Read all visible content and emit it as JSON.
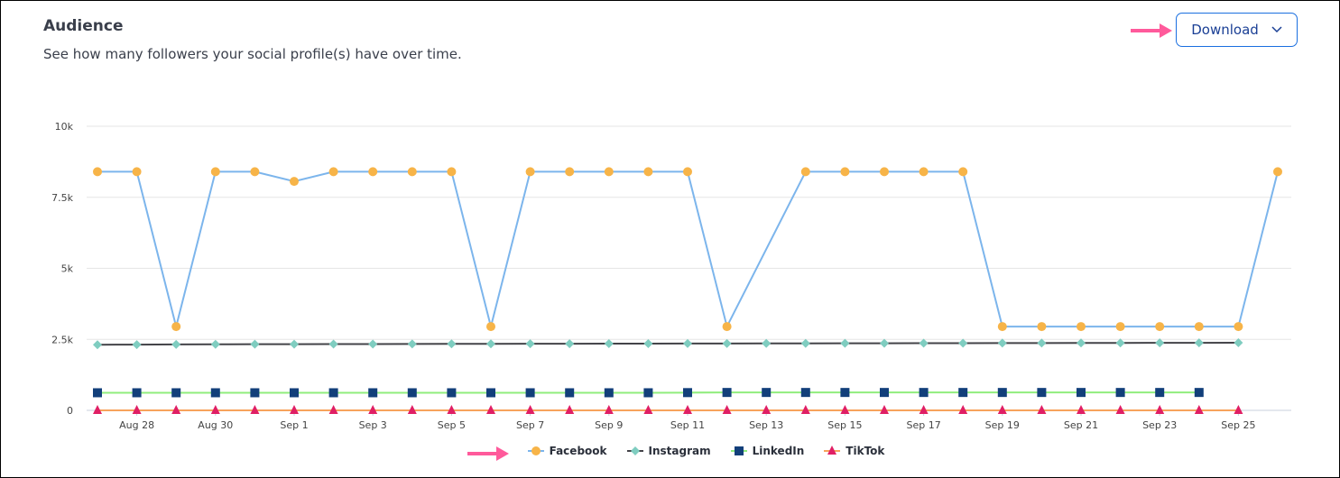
{
  "header": {
    "title": "Audience",
    "subtitle": "See how many followers your social profile(s) have over time.",
    "download_label": "Download"
  },
  "colors": {
    "annotation_arrow": "#ff5a9b",
    "button_border": "#1a6fe0"
  },
  "chart_data": {
    "type": "line",
    "x": [
      "Aug 27",
      "Aug 28",
      "Aug 29",
      "Aug 30",
      "Aug 31",
      "Sep 1",
      "Sep 2",
      "Sep 3",
      "Sep 4",
      "Sep 5",
      "Sep 6",
      "Sep 7",
      "Sep 8",
      "Sep 9",
      "Sep 10",
      "Sep 11",
      "Sep 12",
      "Sep 13",
      "Sep 14",
      "Sep 15",
      "Sep 16",
      "Sep 17",
      "Sep 18",
      "Sep 19",
      "Sep 20",
      "Sep 21",
      "Sep 22",
      "Sep 23",
      "Sep 24",
      "Sep 25",
      "Sep 26"
    ],
    "x_tick_labels": [
      "Aug 28",
      "Aug 30",
      "Sep 1",
      "Sep 3",
      "Sep 5",
      "Sep 7",
      "Sep 9",
      "Sep 11",
      "Sep 13",
      "Sep 15",
      "Sep 17",
      "Sep 19",
      "Sep 21",
      "Sep 23",
      "Sep 25"
    ],
    "y_ticks": [
      0,
      2500,
      5000,
      7500,
      10000
    ],
    "y_tick_labels": [
      "0",
      "2.5k",
      "5k",
      "7.5k",
      "10k"
    ],
    "ylim": [
      0,
      10000
    ],
    "grid": "horizontal",
    "legend": "bottom",
    "series": [
      {
        "name": "Facebook",
        "line_color": "#7cb5ec",
        "marker_color": "#f7b448",
        "marker": "circle",
        "values": [
          8400,
          8400,
          2950,
          8400,
          8400,
          8060,
          8400,
          8400,
          8400,
          8400,
          2950,
          8400,
          8400,
          8400,
          8400,
          8400,
          2950,
          null,
          8400,
          8400,
          8400,
          8400,
          8400,
          2950,
          2950,
          2950,
          2950,
          2950,
          2950,
          2950,
          8400
        ]
      },
      {
        "name": "Instagram",
        "line_color": "#434348",
        "marker_color": "#7fcdc0",
        "marker": "diamond",
        "values": [
          2310,
          2315,
          2320,
          2325,
          2328,
          2330,
          2332,
          2335,
          2338,
          2340,
          2342,
          2344,
          2346,
          2348,
          2350,
          2352,
          2354,
          2356,
          2358,
          2360,
          2362,
          2364,
          2366,
          2368,
          2370,
          2372,
          2374,
          2376,
          2378,
          2380,
          null
        ]
      },
      {
        "name": "LinkedIn",
        "line_color": "#90ed7d",
        "marker_color": "#123f7a",
        "marker": "square",
        "values": [
          620,
          620,
          620,
          620,
          620,
          620,
          620,
          620,
          620,
          620,
          620,
          620,
          620,
          620,
          620,
          625,
          630,
          630,
          630,
          630,
          630,
          630,
          630,
          630,
          630,
          630,
          630,
          630,
          630,
          null,
          null
        ]
      },
      {
        "name": "TikTok",
        "line_color": "#f7a35c",
        "marker_color": "#e01f64",
        "marker": "triangle",
        "values": [
          0,
          0,
          0,
          0,
          0,
          0,
          0,
          0,
          0,
          0,
          0,
          0,
          0,
          0,
          0,
          0,
          0,
          0,
          0,
          0,
          0,
          0,
          0,
          0,
          0,
          0,
          0,
          0,
          0,
          0,
          null
        ]
      }
    ]
  }
}
